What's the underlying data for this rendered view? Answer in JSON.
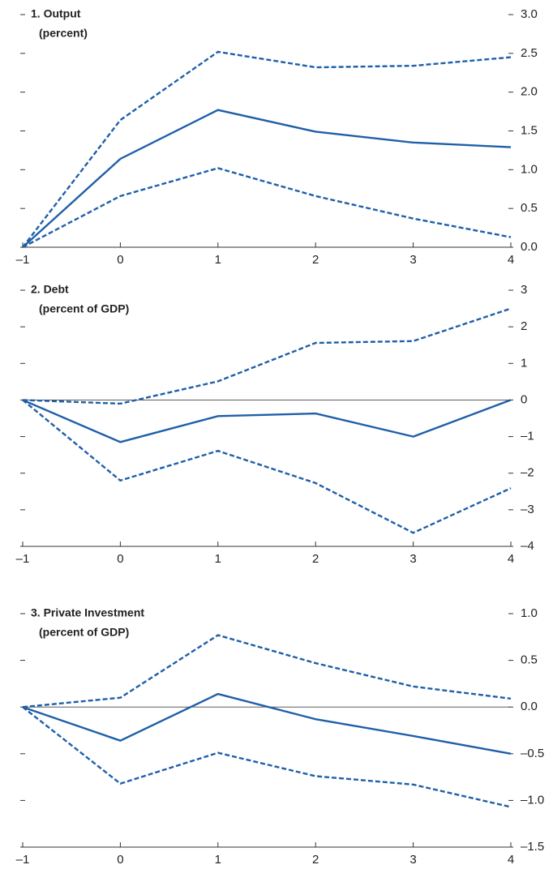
{
  "chart_data": [
    {
      "type": "line",
      "title": "1. Output",
      "subtitle": "(percent)",
      "x": [
        -1,
        0,
        1,
        2,
        3,
        4
      ],
      "xlim": [
        -1,
        4
      ],
      "xticks": [
        {
          "value": -1,
          "label": "–1"
        },
        0,
        1,
        2,
        3,
        4
      ],
      "ylim": [
        0,
        3
      ],
      "yticks": [
        {
          "value": 0,
          "label": "0.0"
        },
        0.5,
        {
          "value": 1,
          "label": "1.0"
        },
        1.5,
        {
          "value": 2,
          "label": "2.0"
        },
        2.5,
        {
          "value": 3,
          "label": "3.0"
        }
      ],
      "zero_line": false,
      "series": [
        {
          "color": "#1f5fa8",
          "style": "solid",
          "values": [
            0,
            1.14,
            1.77,
            1.49,
            1.35,
            1.29
          ]
        },
        {
          "color": "#1f5fa8",
          "style": "dashed",
          "values": [
            0,
            1.64,
            2.52,
            2.32,
            2.34,
            2.45
          ]
        },
        {
          "color": "#1f5fa8",
          "style": "dashed",
          "values": [
            0,
            0.66,
            1.02,
            0.66,
            0.37,
            0.13
          ]
        }
      ]
    },
    {
      "type": "line",
      "title": "2. Debt",
      "subtitle": "(percent of GDP)",
      "x": [
        -1,
        0,
        1,
        2,
        3,
        4
      ],
      "xlim": [
        -1,
        4
      ],
      "xticks": [
        {
          "value": -1,
          "label": "–1"
        },
        0,
        1,
        2,
        3,
        4
      ],
      "ylim": [
        -4,
        3
      ],
      "yticks": [
        {
          "value": -4,
          "label": "–4"
        },
        {
          "value": -3,
          "label": "–3"
        },
        {
          "value": -2,
          "label": "–2"
        },
        {
          "value": -1,
          "label": "–1"
        },
        0,
        1,
        2,
        3
      ],
      "zero_line": true,
      "series": [
        {
          "color": "#1f5fa8",
          "style": "solid",
          "values": [
            0,
            -1.15,
            -0.44,
            -0.37,
            -1.0,
            0
          ]
        },
        {
          "color": "#1f5fa8",
          "style": "dashed",
          "values": [
            0,
            -0.1,
            0.51,
            1.56,
            1.61,
            2.5
          ]
        },
        {
          "color": "#1f5fa8",
          "style": "dashed",
          "values": [
            0,
            -2.2,
            -1.39,
            -2.27,
            -3.63,
            -2.41
          ]
        }
      ]
    },
    {
      "type": "line",
      "title": "3. Private Investment",
      "subtitle": "(percent of GDP)",
      "x": [
        -1,
        0,
        1,
        2,
        3,
        4
      ],
      "xlim": [
        -1,
        4
      ],
      "xticks": [
        {
          "value": -1,
          "label": "–1"
        },
        0,
        1,
        2,
        3,
        4
      ],
      "ylim": [
        -1.5,
        1
      ],
      "yticks": [
        {
          "value": -1.5,
          "label": "–1.5"
        },
        {
          "value": -1,
          "label": "–1.0"
        },
        {
          "value": -0.5,
          "label": "–0.5"
        },
        {
          "value": 0,
          "label": "0.0"
        },
        0.5,
        {
          "value": 1,
          "label": "1.0"
        }
      ],
      "zero_line": true,
      "series": [
        {
          "color": "#1f5fa8",
          "style": "solid",
          "values": [
            0,
            -0.36,
            0.14,
            -0.13,
            -0.31,
            -0.5
          ]
        },
        {
          "color": "#1f5fa8",
          "style": "dashed",
          "values": [
            0,
            0.1,
            0.77,
            0.47,
            0.22,
            0.09
          ]
        },
        {
          "color": "#1f5fa8",
          "style": "dashed",
          "values": [
            0,
            -0.82,
            -0.49,
            -0.74,
            -0.83,
            -1.07
          ]
        }
      ]
    }
  ]
}
